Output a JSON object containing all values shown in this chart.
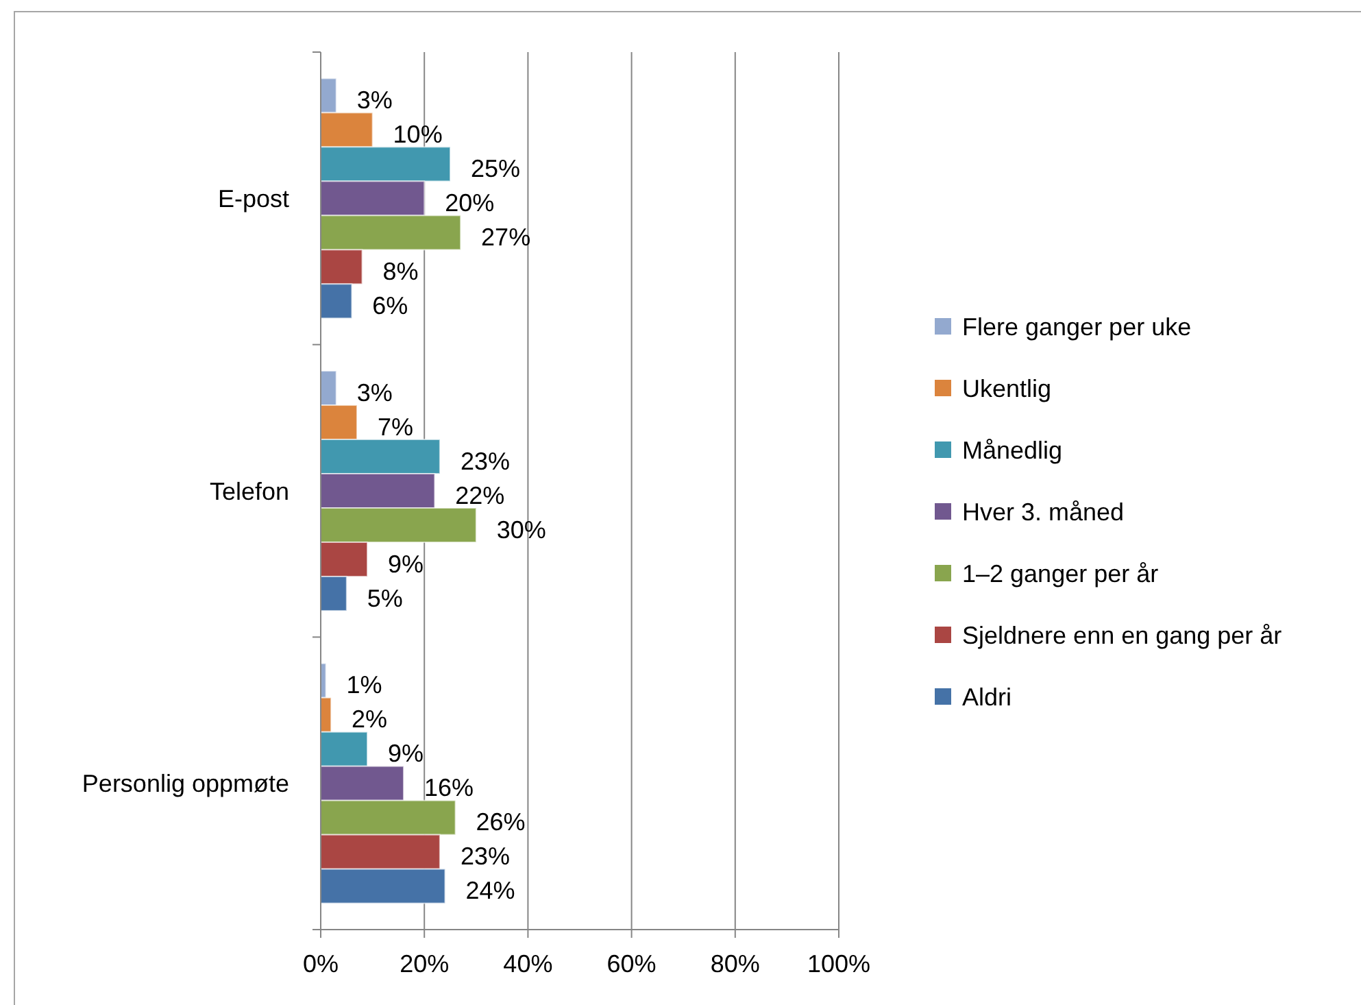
{
  "chart_data": {
    "type": "bar",
    "orientation": "horizontal",
    "categories": [
      "E-post",
      "Telefon",
      "Personlig oppmøte"
    ],
    "series": [
      {
        "name": "Flere ganger per uke",
        "color": "#93a9cf",
        "values": [
          3,
          3,
          1
        ],
        "value_labels": [
          "3%",
          "3%",
          "1%"
        ]
      },
      {
        "name": "Ukentlig",
        "color": "#db843d",
        "values": [
          10,
          7,
          2
        ],
        "value_labels": [
          "10%",
          "7%",
          "2%"
        ]
      },
      {
        "name": "Månedlig",
        "color": "#4198af",
        "values": [
          25,
          23,
          9
        ],
        "value_labels": [
          "25%",
          "23%",
          "9%"
        ]
      },
      {
        "name": "Hver 3. måned",
        "color": "#71588f",
        "values": [
          20,
          22,
          16
        ],
        "value_labels": [
          "20%",
          "22%",
          "16%"
        ]
      },
      {
        "name": "1–2 ganger per år",
        "color": "#89a54e",
        "values": [
          27,
          30,
          26
        ],
        "value_labels": [
          "27%",
          "30%",
          "26%"
        ]
      },
      {
        "name": "Sjeldnere enn en gang per år",
        "color": "#aa4643",
        "values": [
          8,
          9,
          23
        ],
        "value_labels": [
          "8%",
          "9%",
          "23%"
        ]
      },
      {
        "name": "Aldri",
        "color": "#4572a7",
        "values": [
          6,
          5,
          24
        ],
        "value_labels": [
          "6%",
          "5%",
          "24%"
        ]
      }
    ],
    "xlim": [
      0,
      100
    ],
    "xticks": [
      {
        "value": 0,
        "label": "0%"
      },
      {
        "value": 20,
        "label": "20%"
      },
      {
        "value": 40,
        "label": "40%"
      },
      {
        "value": 60,
        "label": "60%"
      },
      {
        "value": 80,
        "label": "80%"
      },
      {
        "value": 100,
        "label": "100%"
      }
    ],
    "grid": "x",
    "legend": "right"
  }
}
